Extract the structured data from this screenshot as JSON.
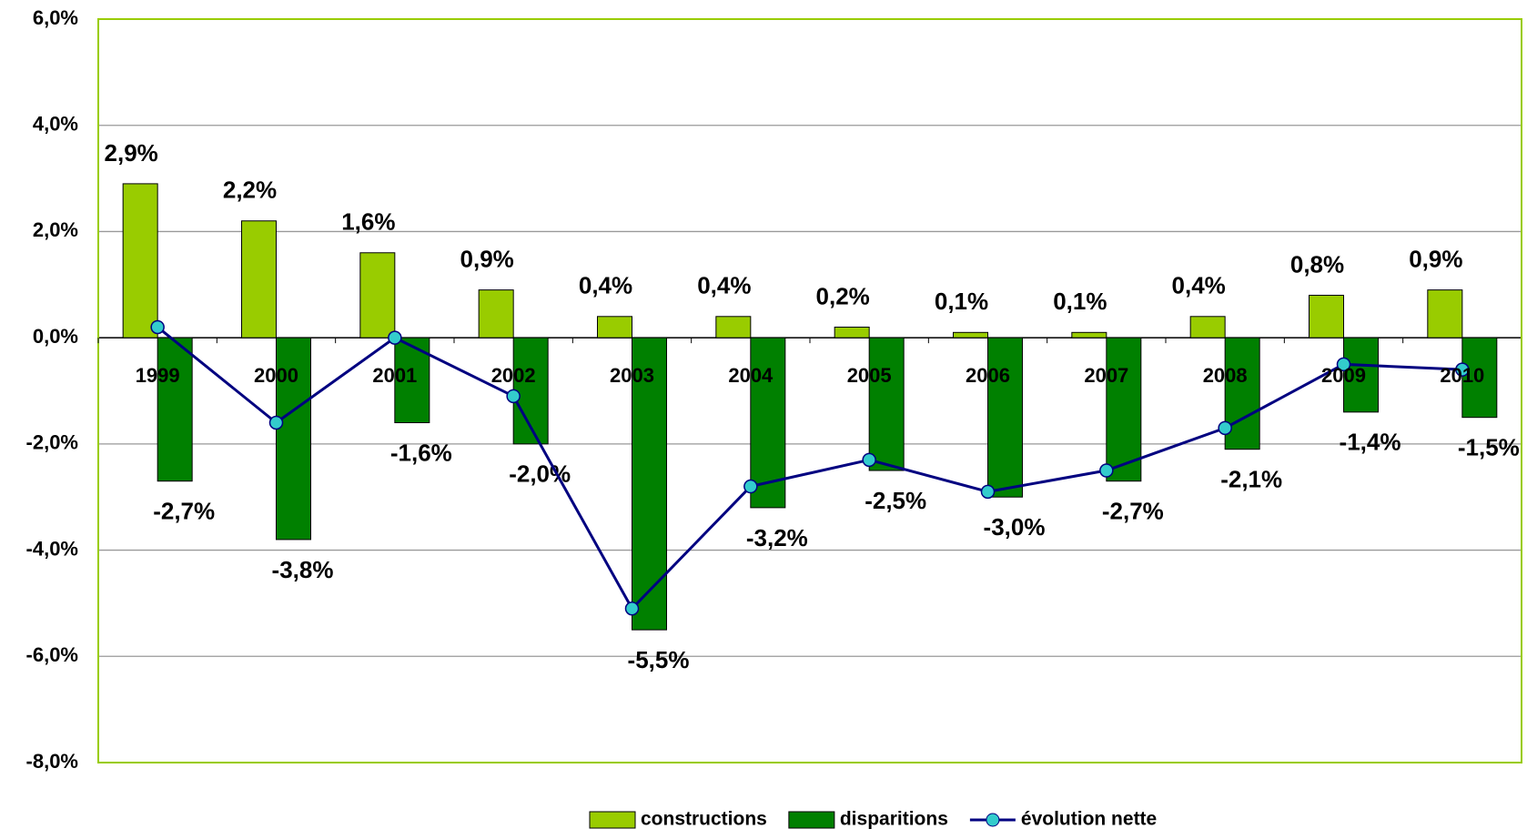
{
  "chart_data": {
    "type": "bar",
    "categories": [
      "1999",
      "2000",
      "2001",
      "2002",
      "2003",
      "2004",
      "2005",
      "2006",
      "2007",
      "2008",
      "2009",
      "2010"
    ],
    "series": [
      {
        "name": "constructions",
        "type": "bar",
        "color": "#99cc00",
        "values": [
          2.9,
          2.2,
          1.6,
          0.9,
          0.4,
          0.4,
          0.2,
          0.1,
          0.1,
          0.4,
          0.8,
          0.9
        ],
        "value_labels": [
          "2,9%",
          "2,2%",
          "1,6%",
          "0,9%",
          "0,4%",
          "0,4%",
          "0,2%",
          "0,1%",
          "0,1%",
          "0,4%",
          "0,8%",
          "0,9%"
        ]
      },
      {
        "name": "disparitions",
        "type": "bar",
        "color": "#008000",
        "values": [
          -2.7,
          -3.8,
          -1.6,
          -2.0,
          -5.5,
          -3.2,
          -2.5,
          -3.0,
          -2.7,
          -2.1,
          -1.4,
          -1.5
        ],
        "value_labels": [
          "-2,7%",
          "-3,8%",
          "-1,6%",
          "-2,0%",
          "-5,5%",
          "-3,2%",
          "-2,5%",
          "-3,0%",
          "-2,7%",
          "-2,1%",
          "-1,4%",
          "-1,5%"
        ]
      },
      {
        "name": "évolution nette",
        "type": "line",
        "color": "#000080",
        "marker_color": "#33cccc",
        "values": [
          0.2,
          -1.6,
          0.0,
          -1.1,
          -5.1,
          -2.8,
          -2.3,
          -2.9,
          -2.5,
          -1.7,
          -0.5,
          -0.6
        ]
      }
    ],
    "ylim": [
      -8,
      6
    ],
    "yticks": [
      {
        "value": -8,
        "label": "-8,0%"
      },
      {
        "value": -6,
        "label": "-6,0%"
      },
      {
        "value": -4,
        "label": "-4,0%"
      },
      {
        "value": -2,
        "label": "-2,0%"
      },
      {
        "value": 0,
        "label": "0,0%"
      },
      {
        "value": 2,
        "label": "2,0%"
      },
      {
        "value": 4,
        "label": "4,0%"
      },
      {
        "value": 6,
        "label": "6,0%"
      }
    ],
    "grid": true,
    "legend": "bottom"
  }
}
